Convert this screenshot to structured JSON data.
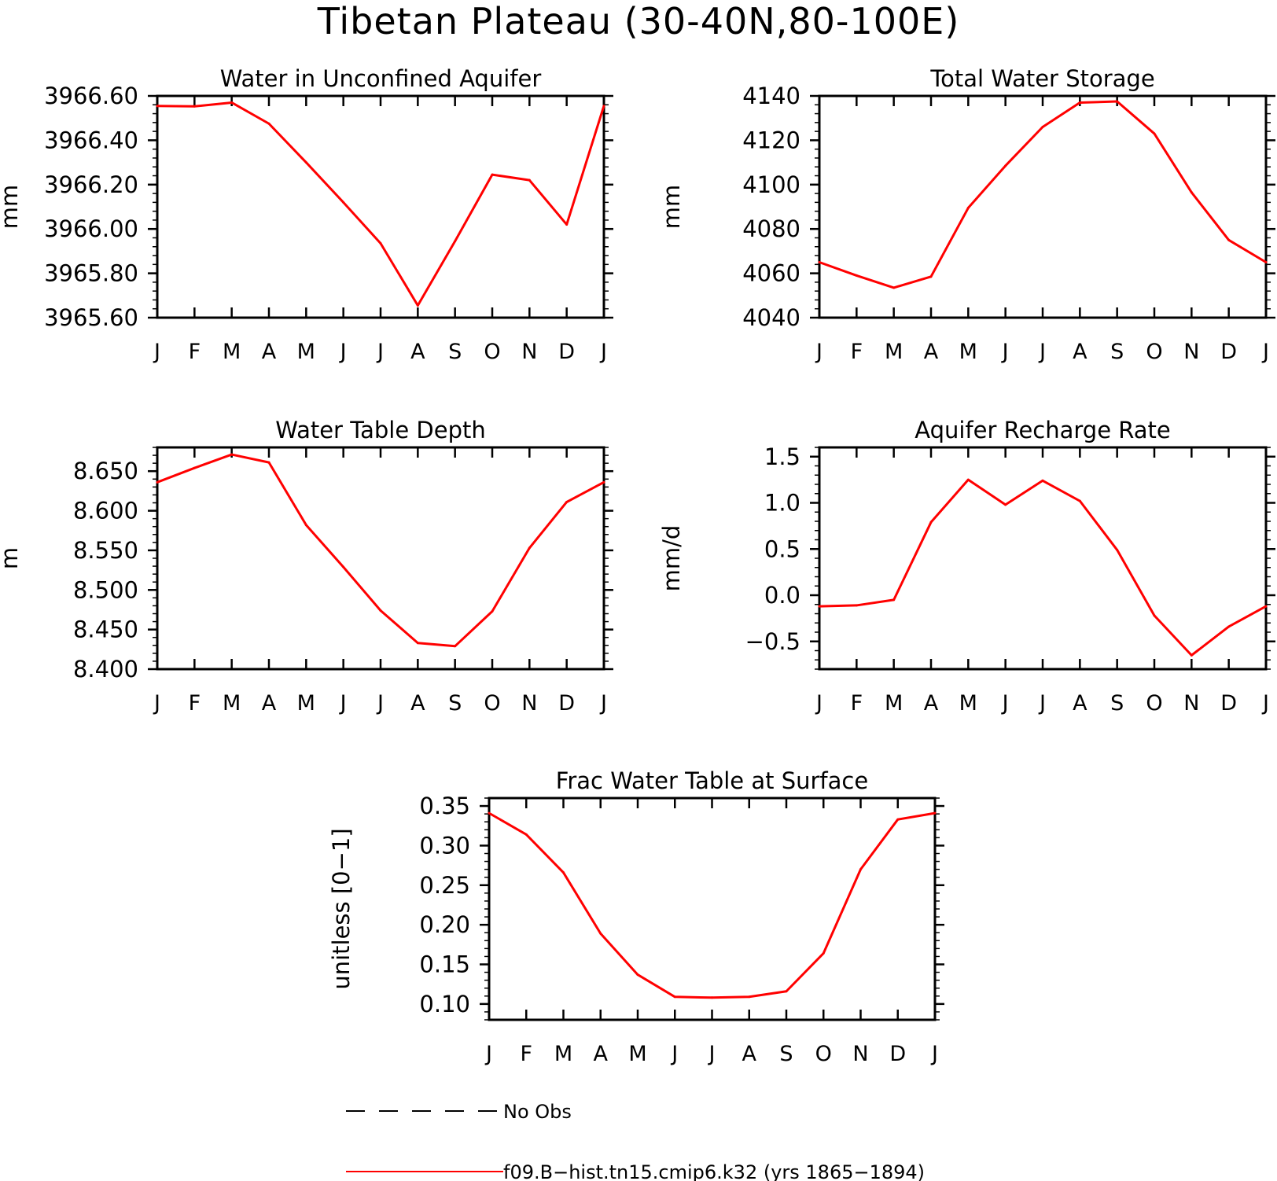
{
  "title": "Tibetan Plateau (30-40N,80-100E)",
  "month_labels": [
    "J",
    "F",
    "M",
    "A",
    "M",
    "J",
    "J",
    "A",
    "S",
    "O",
    "N",
    "D",
    "J"
  ],
  "chart_data": [
    {
      "id": "panel-aquifer-water",
      "type": "line",
      "title": "Water in Unconfined Aquifer",
      "ylabel": "mm",
      "ylim": [
        3965.6,
        3966.6
      ],
      "yticks": [
        3965.6,
        3965.8,
        3966.0,
        3966.2,
        3966.4,
        3966.6
      ],
      "ytick_labels": [
        "3965.60",
        "3965.80",
        "3966.00",
        "3966.20",
        "3966.40",
        "3966.60"
      ],
      "series": [
        {
          "color": "#ff0000",
          "values": [
            3966.555,
            3966.553,
            3966.57,
            3966.475,
            3966.3,
            3966.12,
            3965.935,
            3965.655,
            3965.945,
            3966.245,
            3966.22,
            3966.02,
            3966.555
          ]
        }
      ]
    },
    {
      "id": "panel-total-storage",
      "type": "line",
      "title": "Total Water Storage",
      "ylabel": "mm",
      "ylim": [
        4040,
        4140
      ],
      "yticks": [
        4040,
        4060,
        4080,
        4100,
        4120,
        4140
      ],
      "ytick_labels": [
        "4040",
        "4060",
        "4080",
        "4100",
        "4120",
        "4140"
      ],
      "series": [
        {
          "color": "#ff0000",
          "values": [
            4065,
            4059,
            4053.5,
            4058.5,
            4089.5,
            4108.5,
            4126,
            4137,
            4137.5,
            4123,
            4096.5,
            4075,
            4065
          ]
        }
      ]
    },
    {
      "id": "panel-water-table-depth",
      "type": "line",
      "title": "Water Table Depth",
      "ylabel": "m",
      "ylim": [
        8.4,
        8.68
      ],
      "yticks": [
        8.4,
        8.45,
        8.5,
        8.55,
        8.6,
        8.65
      ],
      "ytick_labels": [
        "8.400",
        "8.450",
        "8.500",
        "8.550",
        "8.600",
        "8.650"
      ],
      "series": [
        {
          "color": "#ff0000",
          "values": [
            8.636,
            8.654,
            8.671,
            8.661,
            8.582,
            8.529,
            8.474,
            8.433,
            8.429,
            8.473,
            8.553,
            8.611,
            8.636
          ]
        }
      ]
    },
    {
      "id": "panel-recharge-rate",
      "type": "line",
      "title": "Aquifer Recharge Rate",
      "ylabel": "mm/d",
      "ylim": [
        -0.8,
        1.6
      ],
      "yticks": [
        -0.5,
        0.0,
        0.5,
        1.0,
        1.5
      ],
      "ytick_labels": [
        "−0.5",
        "0.0",
        "0.5",
        "1.0",
        "1.5"
      ],
      "series": [
        {
          "color": "#ff0000",
          "values": [
            -0.12,
            -0.11,
            -0.05,
            0.79,
            1.25,
            0.98,
            1.24,
            1.02,
            0.49,
            -0.22,
            -0.65,
            -0.34,
            -0.12
          ]
        }
      ]
    },
    {
      "id": "panel-frac-water-table",
      "type": "line",
      "title": "Frac Water Table at Surface",
      "ylabel": "unitless [0−1]",
      "ylim": [
        0.08,
        0.36
      ],
      "yticks": [
        0.1,
        0.15,
        0.2,
        0.25,
        0.3,
        0.35
      ],
      "ytick_labels": [
        "0.10",
        "0.15",
        "0.20",
        "0.25",
        "0.30",
        "0.35"
      ],
      "series": [
        {
          "color": "#ff0000",
          "values": [
            0.341,
            0.314,
            0.266,
            0.189,
            0.137,
            0.109,
            0.108,
            0.109,
            0.116,
            0.164,
            0.27,
            0.333,
            0.341
          ]
        }
      ]
    }
  ],
  "legend": [
    {
      "label": "No Obs",
      "color": "#000000",
      "style": "dashed"
    },
    {
      "label": "f09.B−hist.tn15.cmip6.k32 (yrs 1865−1894)",
      "color": "#ff0000",
      "style": "solid"
    }
  ]
}
